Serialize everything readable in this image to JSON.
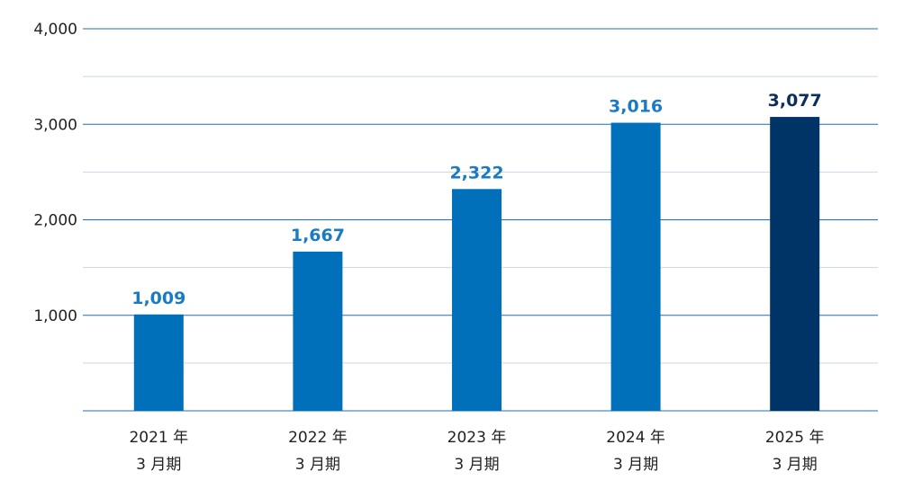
{
  "chart_data": {
    "type": "bar",
    "categories": [
      [
        "2021 年",
        "3 月期"
      ],
      [
        "2022 年",
        "3 月期"
      ],
      [
        "2023 年",
        "3 月期"
      ],
      [
        "2024 年",
        "3 月期"
      ],
      [
        "2025 年",
        "3 月期"
      ]
    ],
    "values": [
      1009,
      1667,
      2322,
      3016,
      3077
    ],
    "data_labels": [
      "1,009",
      "1,667",
      "2,322",
      "3,016",
      "3,077"
    ],
    "ylim": [
      0,
      4000
    ],
    "yticks": [
      1000,
      2000,
      3000,
      4000
    ],
    "ytick_labels": [
      "1,000",
      "2,000",
      "3,000",
      "4,000"
    ],
    "grid": true,
    "legend": "none",
    "colors": {
      "bar": "#0070BA",
      "bar_highlight": "#003366",
      "label": "#1A7BC4",
      "label_highlight": "#0D2D5A",
      "major_grid": "#1F6FB5",
      "minor_grid": "#CCD6DE"
    },
    "highlight_index": 4
  }
}
